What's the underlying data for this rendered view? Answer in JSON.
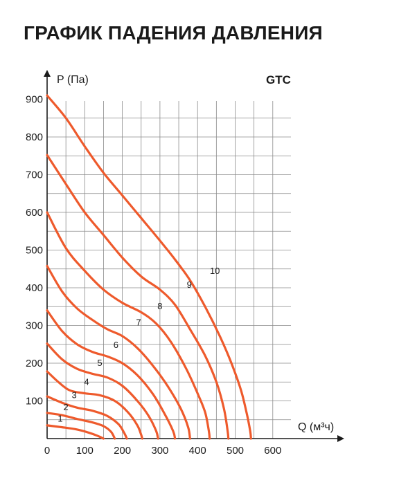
{
  "page": {
    "title": "ГРАФИК ПАДЕНИЯ ДАВЛЕНИЯ"
  },
  "chart_data": {
    "type": "line",
    "title": "GTC",
    "xlabel": "Q (м³ч)",
    "ylabel": "P (Па)",
    "xlim": [
      0,
      650
    ],
    "ylim": [
      0,
      900
    ],
    "grid": true,
    "x_ticks": [
      0,
      100,
      200,
      300,
      400,
      500,
      600
    ],
    "y_ticks": [
      100,
      200,
      300,
      400,
      500,
      600,
      700,
      800,
      900
    ],
    "line_color": "#ee5a2c",
    "series": [
      {
        "name": "1",
        "points": [
          [
            0,
            35
          ],
          [
            40,
            30
          ],
          [
            80,
            24
          ],
          [
            110,
            16
          ],
          [
            135,
            7
          ],
          [
            150,
            0
          ]
        ]
      },
      {
        "name": "2",
        "points": [
          [
            0,
            68
          ],
          [
            40,
            62
          ],
          [
            80,
            52
          ],
          [
            120,
            43
          ],
          [
            150,
            33
          ],
          [
            170,
            18
          ],
          [
            180,
            0
          ]
        ]
      },
      {
        "name": "3",
        "points": [
          [
            0,
            112
          ],
          [
            40,
            95
          ],
          [
            80,
            82
          ],
          [
            120,
            74
          ],
          [
            160,
            60
          ],
          [
            190,
            38
          ],
          [
            205,
            15
          ],
          [
            212,
            0
          ]
        ]
      },
      {
        "name": "4",
        "points": [
          [
            0,
            178
          ],
          [
            30,
            150
          ],
          [
            60,
            128
          ],
          [
            100,
            120
          ],
          [
            140,
            115
          ],
          [
            180,
            100
          ],
          [
            215,
            70
          ],
          [
            240,
            35
          ],
          [
            250,
            10
          ],
          [
            253,
            0
          ]
        ]
      },
      {
        "name": "5",
        "points": [
          [
            0,
            252
          ],
          [
            40,
            210
          ],
          [
            80,
            185
          ],
          [
            120,
            172
          ],
          [
            160,
            162
          ],
          [
            200,
            140
          ],
          [
            240,
            100
          ],
          [
            270,
            60
          ],
          [
            290,
            20
          ],
          [
            295,
            0
          ]
        ]
      },
      {
        "name": "6",
        "points": [
          [
            0,
            340
          ],
          [
            40,
            285
          ],
          [
            80,
            250
          ],
          [
            120,
            230
          ],
          [
            160,
            218
          ],
          [
            200,
            200
          ],
          [
            240,
            168
          ],
          [
            280,
            120
          ],
          [
            310,
            70
          ],
          [
            335,
            20
          ],
          [
            340,
            0
          ]
        ]
      },
      {
        "name": "7",
        "points": [
          [
            0,
            458
          ],
          [
            40,
            390
          ],
          [
            80,
            345
          ],
          [
            120,
            315
          ],
          [
            160,
            290
          ],
          [
            200,
            272
          ],
          [
            240,
            240
          ],
          [
            280,
            195
          ],
          [
            320,
            140
          ],
          [
            355,
            80
          ],
          [
            375,
            30
          ],
          [
            380,
            0
          ]
        ]
      },
      {
        "name": "8",
        "points": [
          [
            0,
            600
          ],
          [
            50,
            505
          ],
          [
            100,
            445
          ],
          [
            150,
            395
          ],
          [
            200,
            360
          ],
          [
            250,
            335
          ],
          [
            290,
            305
          ],
          [
            330,
            255
          ],
          [
            370,
            185
          ],
          [
            400,
            120
          ],
          [
            420,
            70
          ],
          [
            430,
            20
          ],
          [
            432,
            0
          ]
        ]
      },
      {
        "name": "9",
        "points": [
          [
            0,
            752
          ],
          [
            50,
            675
          ],
          [
            100,
            600
          ],
          [
            150,
            540
          ],
          [
            200,
            480
          ],
          [
            250,
            430
          ],
          [
            300,
            395
          ],
          [
            340,
            355
          ],
          [
            380,
            290
          ],
          [
            420,
            220
          ],
          [
            450,
            150
          ],
          [
            470,
            80
          ],
          [
            480,
            20
          ],
          [
            482,
            0
          ]
        ]
      },
      {
        "name": "10",
        "points": [
          [
            0,
            910
          ],
          [
            50,
            850
          ],
          [
            100,
            775
          ],
          [
            150,
            705
          ],
          [
            200,
            645
          ],
          [
            250,
            585
          ],
          [
            300,
            525
          ],
          [
            340,
            475
          ],
          [
            380,
            420
          ],
          [
            420,
            350
          ],
          [
            460,
            270
          ],
          [
            490,
            200
          ],
          [
            515,
            130
          ],
          [
            530,
            70
          ],
          [
            540,
            20
          ],
          [
            542,
            0
          ]
        ]
      }
    ],
    "curve_labels": [
      {
        "text": "1",
        "x": 35,
        "y": 45
      },
      {
        "text": "2",
        "x": 50,
        "y": 75
      },
      {
        "text": "3",
        "x": 72,
        "y": 107
      },
      {
        "text": "4",
        "x": 105,
        "y": 142
      },
      {
        "text": "5",
        "x": 140,
        "y": 193
      },
      {
        "text": "6",
        "x": 183,
        "y": 240
      },
      {
        "text": "7",
        "x": 243,
        "y": 300
      },
      {
        "text": "8",
        "x": 300,
        "y": 343
      },
      {
        "text": "9",
        "x": 378,
        "y": 400
      },
      {
        "text": "10",
        "x": 446,
        "y": 437
      }
    ]
  }
}
